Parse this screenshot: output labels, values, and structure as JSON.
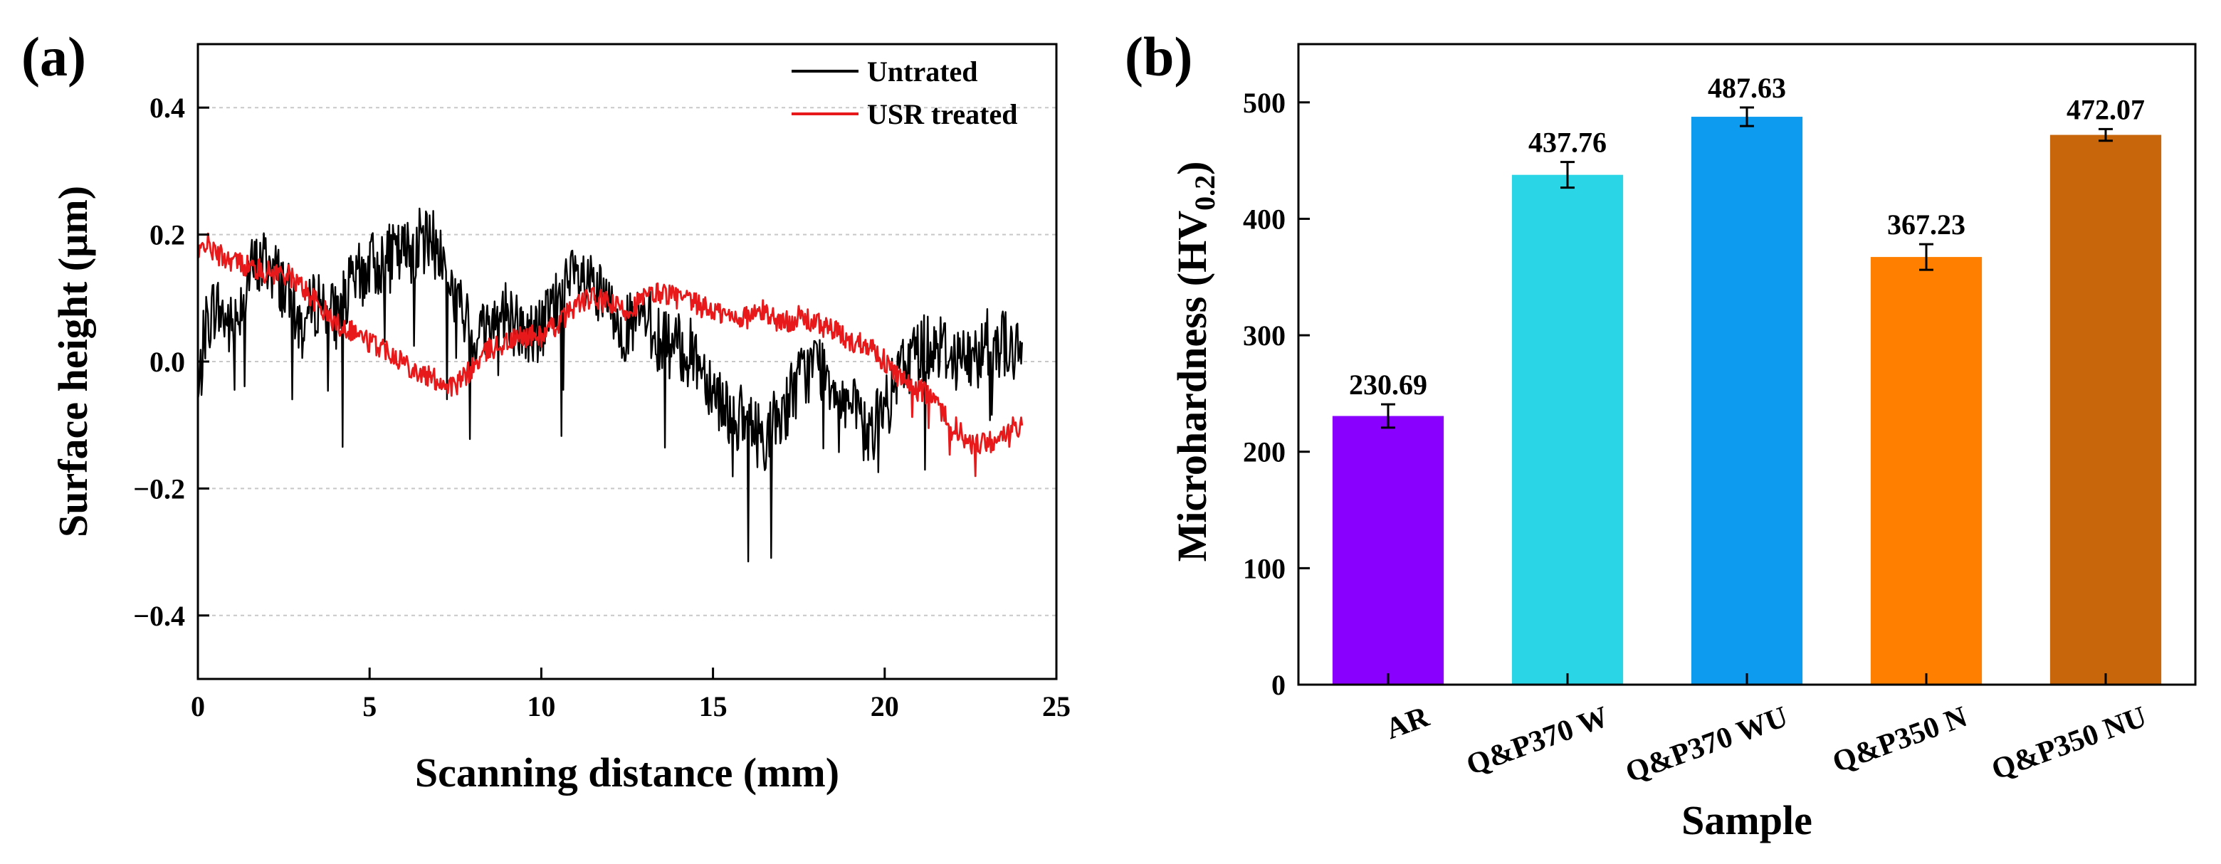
{
  "chart_data": [
    {
      "panel": "(a)",
      "type": "line",
      "xlabel": "Scanning distance (mm)",
      "ylabel": "Surface height (µm)",
      "xlim": [
        0,
        25
      ],
      "ylim": [
        -0.5,
        0.5
      ],
      "xticks": [
        0,
        5,
        10,
        15,
        20,
        25
      ],
      "yticks": [
        -0.4,
        -0.2,
        0.0,
        0.2,
        0.4
      ],
      "ytick_labels": [
        "−0.4",
        "−0.2",
        "0.0",
        "0.2",
        "0.4"
      ],
      "grid": true,
      "legend_position": "top-right",
      "series": [
        {
          "name": "Untrated",
          "color": "#000000",
          "x": [
            0,
            0.2,
            0.5,
            1.0,
            1.5,
            2.0,
            2.5,
            3.0,
            3.5,
            4.0,
            4.5,
            5.0,
            5.5,
            6.0,
            6.5,
            7.0,
            7.5,
            8.0,
            8.5,
            9.0,
            9.5,
            10.0,
            10.5,
            11.0,
            11.5,
            12.0,
            12.5,
            13.0,
            13.5,
            14.0,
            14.5,
            15.0,
            15.5,
            16.0,
            16.5,
            17.0,
            17.5,
            18.0,
            18.5,
            19.0,
            19.5,
            20.0,
            20.5,
            21.0,
            21.5,
            22.0,
            22.5,
            23.0,
            23.5,
            24.0
          ],
          "y": [
            -0.07,
            0.05,
            0.09,
            0.05,
            0.14,
            0.16,
            0.12,
            0.05,
            0.1,
            0.07,
            0.12,
            0.15,
            0.16,
            0.17,
            0.19,
            0.18,
            0.1,
            0.04,
            0.06,
            0.08,
            0.04,
            0.05,
            0.1,
            0.13,
            0.11,
            0.08,
            0.05,
            0.07,
            0.03,
            0.02,
            0.01,
            -0.04,
            -0.08,
            -0.1,
            -0.12,
            -0.08,
            -0.03,
            0.0,
            -0.03,
            -0.07,
            -0.12,
            -0.08,
            -0.01,
            0.02,
            0.03,
            0.01,
            0.0,
            0.03,
            0.03,
            0.0
          ]
        },
        {
          "name": "USR treated",
          "color": "#e8191a",
          "x": [
            0,
            0.2,
            0.5,
            1.0,
            1.5,
            2.0,
            2.5,
            3.0,
            3.5,
            4.0,
            4.5,
            5.0,
            5.5,
            6.0,
            6.5,
            7.0,
            7.5,
            8.0,
            8.5,
            9.0,
            9.5,
            10.0,
            10.5,
            11.0,
            11.5,
            12.0,
            12.5,
            13.0,
            13.5,
            14.0,
            14.5,
            15.0,
            15.5,
            16.0,
            16.5,
            17.0,
            17.5,
            18.0,
            18.5,
            19.0,
            19.5,
            20.0,
            20.5,
            21.0,
            21.5,
            22.0,
            22.5,
            23.0,
            23.5,
            24.0
          ],
          "y": [
            0.16,
            0.19,
            0.17,
            0.16,
            0.15,
            0.14,
            0.14,
            0.12,
            0.09,
            0.06,
            0.05,
            0.03,
            0.02,
            0.0,
            -0.02,
            -0.03,
            -0.04,
            -0.01,
            0.02,
            0.03,
            0.04,
            0.04,
            0.06,
            0.09,
            0.1,
            0.09,
            0.08,
            0.1,
            0.11,
            0.1,
            0.09,
            0.08,
            0.07,
            0.07,
            0.08,
            0.06,
            0.07,
            0.06,
            0.05,
            0.03,
            0.03,
            0.0,
            -0.03,
            -0.04,
            -0.07,
            -0.1,
            -0.13,
            -0.13,
            -0.11,
            -0.1
          ]
        }
      ]
    },
    {
      "panel": "(b)",
      "type": "bar",
      "xlabel": "Sample",
      "ylabel": "Microhardness (HV0.2)",
      "ylabel_main": "Microhardness (HV",
      "ylabel_sub": "0.2",
      "ylabel_close": ")",
      "ylim": [
        0,
        550
      ],
      "yticks": [
        0,
        100,
        200,
        300,
        400,
        500
      ],
      "categories": [
        "AR",
        "Q&P370 W",
        "Q&P370 WU",
        "Q&P350 N",
        "Q&P350 NU"
      ],
      "values": [
        230.69,
        437.76,
        487.63,
        367.23,
        472.07
      ],
      "value_labels": [
        "230.69",
        "437.76",
        "487.63",
        "367.23",
        "472.07"
      ],
      "errors": [
        10,
        11,
        8,
        11,
        5
      ],
      "colors": [
        "#8a00ff",
        "#2ad5e6",
        "#0d9bef",
        "#ff8000",
        "#c7660a"
      ]
    }
  ]
}
